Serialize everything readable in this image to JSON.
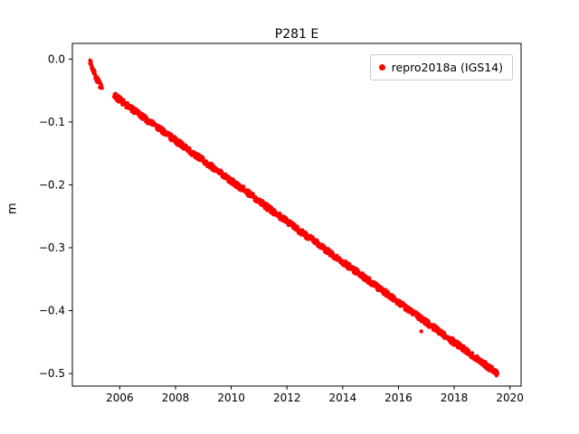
{
  "figure": {
    "title": "P281 E",
    "ylabel": "m"
  },
  "legend": {
    "label": "repro2018a (IGS14)",
    "marker_color": "#ff0000"
  },
  "chart_data": {
    "type": "scatter",
    "title": "P281 E",
    "xlabel": "",
    "ylabel": "m",
    "x_range": [
      2004.3,
      2020.4
    ],
    "y_range": [
      -0.52,
      0.025
    ],
    "x_ticks": [
      2006,
      2008,
      2010,
      2012,
      2014,
      2016,
      2018,
      2020
    ],
    "x_tick_labels": [
      "2006",
      "2008",
      "2010",
      "2012",
      "2014",
      "2016",
      "2018",
      "2020"
    ],
    "y_ticks": [
      0.0,
      -0.1,
      -0.2,
      -0.3,
      -0.4,
      -0.5
    ],
    "y_tick_labels": [
      "0.0",
      "−0.1",
      "−0.2",
      "−0.3",
      "−0.4",
      "−0.5"
    ],
    "grid": false,
    "legend_position": "upper right",
    "series": [
      {
        "name": "repro2018a (IGS14)",
        "color": "#ff0000",
        "marker": "dot",
        "segments": [
          [
            [
              2004.93,
              -0.001
            ],
            [
              2004.98,
              -0.009
            ],
            [
              2005.03,
              -0.016
            ],
            [
              2005.08,
              -0.022
            ],
            [
              2005.13,
              -0.028
            ],
            [
              2005.2,
              -0.034
            ],
            [
              2005.28,
              -0.04
            ],
            [
              2005.36,
              -0.046
            ]
          ],
          [
            [
              2005.8,
              -0.058
            ],
            [
              2006.3,
              -0.075
            ],
            [
              2006.8,
              -0.091
            ],
            [
              2007.3,
              -0.107
            ],
            [
              2007.8,
              -0.123
            ],
            [
              2008.3,
              -0.139
            ],
            [
              2008.8,
              -0.155
            ],
            [
              2009.3,
              -0.171
            ],
            [
              2009.8,
              -0.187
            ],
            [
              2010.3,
              -0.203
            ],
            [
              2010.8,
              -0.219
            ],
            [
              2011.3,
              -0.236
            ],
            [
              2011.8,
              -0.252
            ],
            [
              2012.3,
              -0.268
            ],
            [
              2012.8,
              -0.284
            ],
            [
              2013.3,
              -0.3
            ],
            [
              2013.8,
              -0.316
            ],
            [
              2014.3,
              -0.332
            ],
            [
              2014.8,
              -0.348
            ],
            [
              2015.3,
              -0.364
            ],
            [
              2015.8,
              -0.38
            ],
            [
              2016.3,
              -0.396
            ],
            [
              2016.8,
              -0.412
            ],
            [
              2017.3,
              -0.428
            ],
            [
              2017.8,
              -0.444
            ],
            [
              2018.3,
              -0.46
            ],
            [
              2018.8,
              -0.476
            ],
            [
              2019.3,
              -0.492
            ],
            [
              2019.55,
              -0.5
            ]
          ]
        ],
        "outliers": [
          [
            2016.82,
            -0.433
          ]
        ]
      }
    ]
  }
}
